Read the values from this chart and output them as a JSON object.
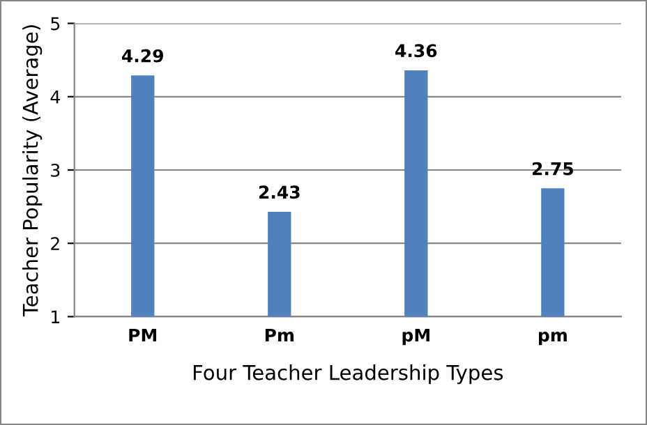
{
  "chart_data": {
    "type": "bar",
    "xlabel": "Four Teacher Leadership Types",
    "ylabel": "Teacher Popularity (Average)",
    "categories": [
      "PM",
      "Pm",
      "pM",
      "pm"
    ],
    "values": [
      4.29,
      2.43,
      4.36,
      2.75
    ],
    "color": "#4f81bd",
    "ylim": [
      1,
      5
    ],
    "yticks": [
      1,
      2,
      3,
      4,
      5
    ],
    "grid": "y",
    "data_labels": true
  }
}
